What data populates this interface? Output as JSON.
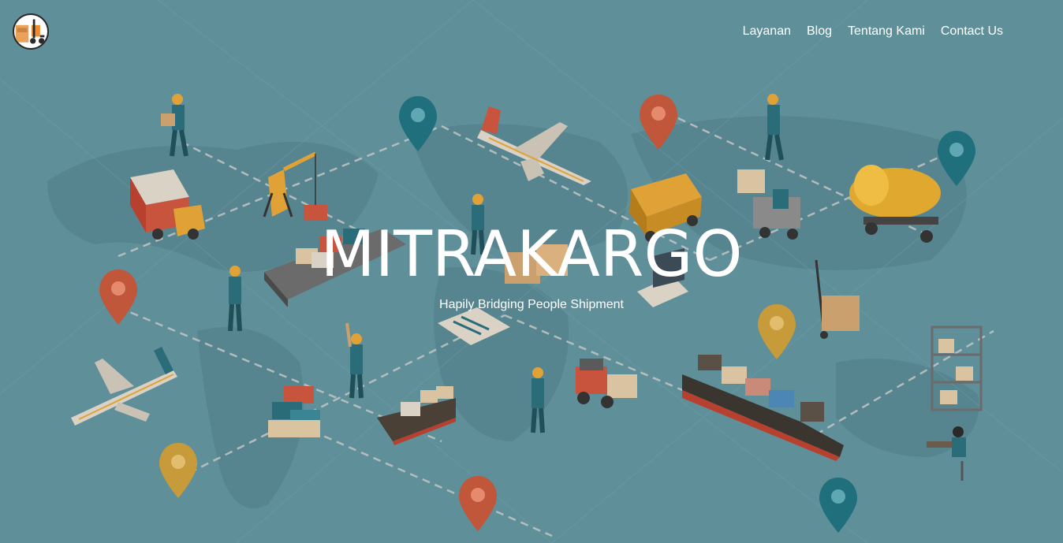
{
  "brand": {
    "logo_icon": "forklift-logo-icon"
  },
  "nav": {
    "items": [
      {
        "label": "Layanan"
      },
      {
        "label": "Blog"
      },
      {
        "label": "Tentang Kami"
      },
      {
        "label": "Contact Us"
      }
    ]
  },
  "hero": {
    "title": "MITRAKARGO",
    "subtitle": "Hapily Bridging People Shipment"
  },
  "colors": {
    "background": "#5f8f99",
    "pin_red": "#c0563a",
    "pin_teal": "#1f6f7c",
    "pin_yellow": "#c79a3a"
  }
}
